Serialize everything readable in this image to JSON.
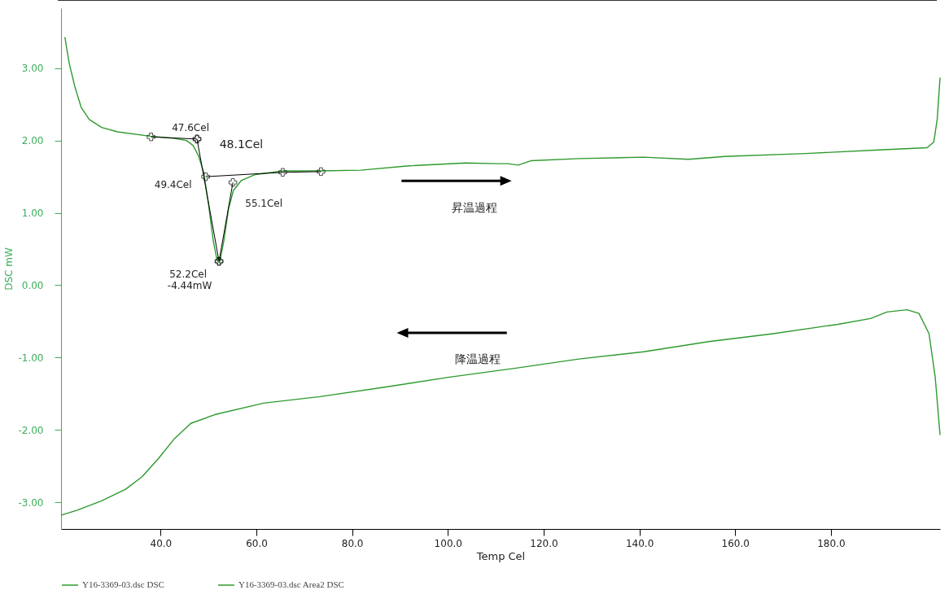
{
  "chart_data": {
    "type": "line",
    "xlabel": "Temp Cel",
    "ylabel": "DSC mW",
    "xlim": [
      19.2,
      202.8
    ],
    "ylim": [
      -3.37,
      3.83
    ],
    "xticks": [
      {
        "value": 40,
        "label": "40.0"
      },
      {
        "value": 60,
        "label": "60.0"
      },
      {
        "value": 80,
        "label": "80.0"
      },
      {
        "value": 100,
        "label": "100.0"
      },
      {
        "value": 120,
        "label": "120.0"
      },
      {
        "value": 140,
        "label": "140.0"
      },
      {
        "value": 160,
        "label": "160.0"
      },
      {
        "value": 180,
        "label": "180.0"
      }
    ],
    "yticks": [
      {
        "value": -3,
        "label": "-3.00"
      },
      {
        "value": -2,
        "label": "-2.00"
      },
      {
        "value": -1,
        "label": "-1.00"
      },
      {
        "value": 0,
        "label": "0.00"
      },
      {
        "value": 1,
        "label": "1.00"
      },
      {
        "value": 2,
        "label": "2.00"
      },
      {
        "value": 3,
        "label": "3.00"
      }
    ],
    "grid": false,
    "legend": "bottom",
    "series": [
      {
        "name": "Y16-3369-03.dsc  DSC",
        "color": "#2e9a2e",
        "x": [
          20.0,
          20.9,
          22.1,
          23.4,
          25.1,
          27.7,
          31.0,
          37.8,
          42.9,
          45.4,
          46.8,
          47.9,
          49.0,
          50.0,
          51.0,
          51.8,
          52.3,
          53.2,
          54.2,
          55.2,
          56.9,
          59.8,
          65.7,
          73.3,
          81.8,
          91.9,
          103.7,
          110.5,
          112.5,
          114.7,
          117.3,
          127.4,
          140.9,
          150.2,
          157.9,
          174.8,
          190.0,
          200.1,
          201.5,
          202.2,
          202.8
        ],
        "values": [
          3.43,
          3.07,
          2.74,
          2.46,
          2.29,
          2.18,
          2.12,
          2.06,
          2.03,
          2.0,
          1.93,
          1.79,
          1.56,
          1.12,
          0.61,
          0.34,
          0.31,
          0.61,
          1.06,
          1.31,
          1.45,
          1.53,
          1.58,
          1.58,
          1.59,
          1.65,
          1.69,
          1.68,
          1.68,
          1.66,
          1.72,
          1.75,
          1.77,
          1.74,
          1.78,
          1.82,
          1.87,
          1.9,
          1.98,
          2.29,
          2.87
        ]
      },
      {
        "name": "Y16-3369-03.dsc Area2 DSC",
        "color": "#2e9a2e",
        "x": [
          202.8,
          201.8,
          200.5,
          198.4,
          195.9,
          191.7,
          188.3,
          181.5,
          168.0,
          154.5,
          140.9,
          127.4,
          113.9,
          100.4,
          86.8,
          73.3,
          61.5,
          51.3,
          46.3,
          42.9,
          39.5,
          36.1,
          32.7,
          27.7,
          22.6,
          19.2
        ],
        "values": [
          -2.07,
          -1.28,
          -0.67,
          -0.39,
          -0.34,
          -0.37,
          -0.46,
          -0.54,
          -0.67,
          -0.78,
          -0.92,
          -1.02,
          -1.15,
          -1.27,
          -1.41,
          -1.54,
          -1.63,
          -1.79,
          -1.91,
          -2.12,
          -2.4,
          -2.65,
          -2.82,
          -2.98,
          -3.11,
          -3.18
        ]
      },
      {
        "color": "#000000",
        "marker": "cross",
        "x": [
          38.0,
          47.6
        ],
        "values": [
          2.05,
          2.02
        ]
      },
      {
        "color": "#000000",
        "marker": "cross",
        "x": [
          47.6,
          52.2
        ],
        "values": [
          2.02,
          0.33
        ]
      },
      {
        "color": "#000000",
        "marker": "cross",
        "x": [
          49.4,
          65.5,
          73.5
        ],
        "values": [
          1.5,
          1.56,
          1.57
        ]
      },
      {
        "color": "#000000",
        "marker": "cross",
        "x": [
          52.2,
          55.1
        ],
        "values": [
          0.33,
          1.42
        ]
      }
    ],
    "annotations": [
      {
        "text": "47.6Cel",
        "x": 47.6,
        "y": 2.02
      },
      "48.1Cel",
      {
        "text": "49.4Cel",
        "x": 49.4,
        "y": 1.5
      },
      {
        "text": "55.1Cel",
        "x": 55.1,
        "y": 1.42
      },
      {
        "text": "52.2Cel",
        "x": 52.2,
        "y": 0.33
      },
      {
        "text": "-4.44mW",
        "x": 52.2,
        "y": 0.33
      },
      "昇温過程",
      "降温過程"
    ]
  }
}
